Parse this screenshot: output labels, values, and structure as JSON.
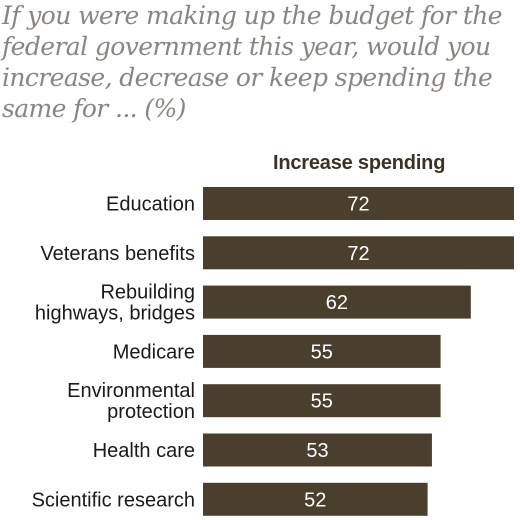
{
  "chart_data": {
    "type": "bar",
    "orientation": "horizontal",
    "title": "If you were making up the budget for the federal government this year, would you increase, decrease or keep spending the same for ... (%)",
    "title_lines": [
      "If you were making up the budget for the",
      "federal government this year, would you",
      "increase, decrease or keep spending the",
      "same for ... (%)"
    ],
    "series": [
      {
        "name": "Increase spending",
        "values": [
          72,
          72,
          62,
          55,
          55,
          53,
          52
        ],
        "color": "#4a3f2c"
      }
    ],
    "categories": [
      [
        "Education"
      ],
      [
        "Veterans benefits"
      ],
      [
        "Rebuilding",
        "highways, bridges"
      ],
      [
        "Medicare"
      ],
      [
        "Environmental",
        "protection"
      ],
      [
        "Health care"
      ],
      [
        "Scientific research"
      ]
    ],
    "xlim": [
      0,
      72
    ],
    "value_label_color": "#ffffff",
    "grid": false,
    "legend": "top"
  }
}
